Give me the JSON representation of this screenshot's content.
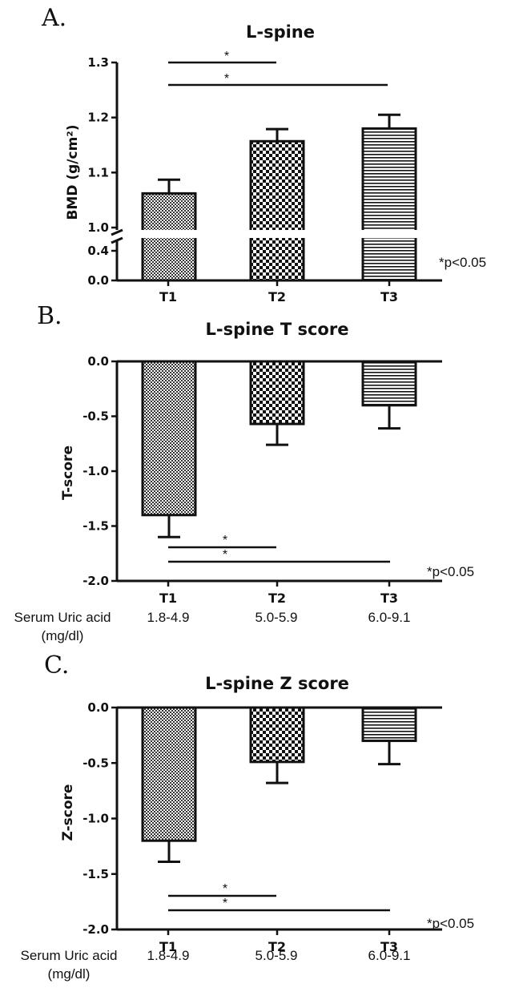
{
  "panels": [
    {
      "letter": "A.",
      "p_note": "*p<0.05"
    },
    {
      "letter": "B.",
      "p_note": "*p<0.05",
      "row_label_line1": "Serum Uric acid",
      "row_label_line2": "(mg/dl)",
      "ranges": [
        "1.8-4.9",
        "5.0-5.9",
        "6.0-9.1"
      ]
    },
    {
      "letter": "C.",
      "p_note": "*p<0.05",
      "row_label_line1": "Serum Uric acid",
      "row_label_line2": "(mg/dl)",
      "ranges": [
        "1.8-4.9",
        "5.0-5.9",
        "6.0-9.1"
      ]
    }
  ],
  "chart_data": [
    {
      "type": "bar",
      "title": "L-spine",
      "ylabel": "BMD (g/cm²)",
      "xlabel": "",
      "categories": [
        "T1",
        "T2",
        "T3"
      ],
      "values": [
        1.062,
        1.157,
        1.18
      ],
      "errors": [
        0.025,
        0.022,
        0.025
      ],
      "ylim": [
        0.0,
        1.3
      ],
      "axis_break": [
        0.45,
        0.98
      ],
      "yticks": [
        "0.0",
        "0.4",
        "1.0",
        "1.1",
        "1.2",
        "1.3"
      ],
      "patterns": [
        "fine-dots",
        "checker",
        "horizontal-lines"
      ],
      "significance": [
        {
          "from": "T1",
          "to": "T2",
          "label": "*"
        },
        {
          "from": "T1",
          "to": "T3",
          "label": "*"
        }
      ]
    },
    {
      "type": "bar",
      "title": "L-spine T score",
      "ylabel": "T-score",
      "xlabel": "",
      "categories": [
        "T1",
        "T2",
        "T3"
      ],
      "values": [
        -1.4,
        -0.57,
        -0.4
      ],
      "errors": [
        0.2,
        0.19,
        0.21
      ],
      "ylim": [
        -2.0,
        0.0
      ],
      "yticks": [
        "0.0",
        "-0.5",
        "-1.0",
        "-1.5",
        "-2.0"
      ],
      "patterns": [
        "fine-dots",
        "checker",
        "horizontal-lines"
      ],
      "significance": [
        {
          "from": "T1",
          "to": "T2",
          "label": "*"
        },
        {
          "from": "T1",
          "to": "T3",
          "label": "*"
        }
      ]
    },
    {
      "type": "bar",
      "title": "L-spine Z score",
      "ylabel": "Z-score",
      "xlabel": "",
      "categories": [
        "T1",
        "T2",
        "T3"
      ],
      "values": [
        -1.2,
        -0.49,
        -0.3
      ],
      "errors": [
        0.19,
        0.19,
        0.21
      ],
      "ylim": [
        -2.0,
        0.0
      ],
      "yticks": [
        "0.0",
        "-0.5",
        "-1.0",
        "-1.5",
        "-2.0"
      ],
      "patterns": [
        "fine-dots",
        "checker",
        "horizontal-lines"
      ],
      "significance": [
        {
          "from": "T1",
          "to": "T2",
          "label": "*"
        },
        {
          "from": "T1",
          "to": "T3",
          "label": "*"
        }
      ]
    }
  ]
}
